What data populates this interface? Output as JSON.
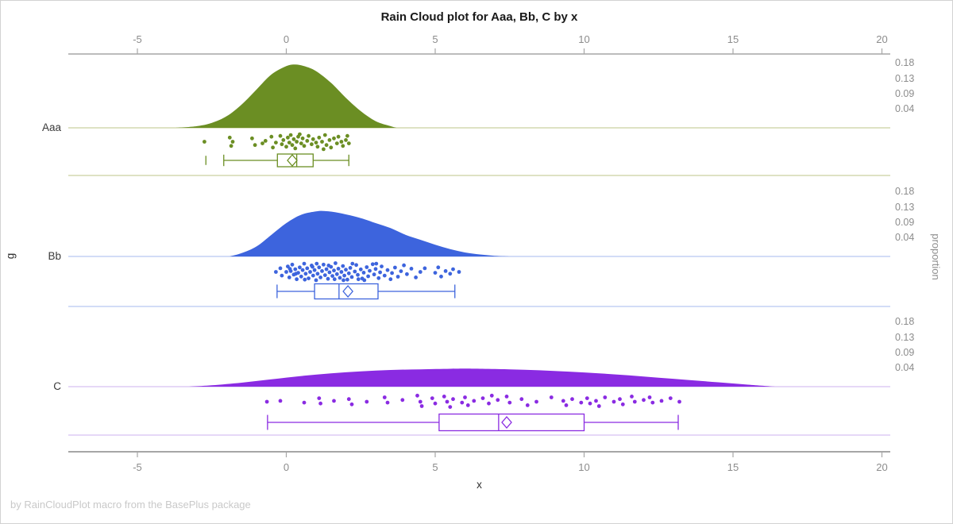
{
  "title": "Rain Cloud plot for Aaa, Bb, C by x",
  "footer": "by RainCloudPlot macro from the BasePlus package",
  "x_axis": {
    "label": "x",
    "ticks": [
      "-5",
      "0",
      "5",
      "10",
      "15",
      "20"
    ],
    "tick_values": [
      -5,
      0,
      5,
      10,
      15,
      20
    ],
    "range": [
      -5,
      20
    ]
  },
  "y_axis": {
    "label": "g",
    "categories": [
      "Aaa",
      "Bb",
      "C"
    ]
  },
  "right_axis": {
    "label": "proportion",
    "tick_labels": [
      "0.18",
      "0.13",
      "0.09",
      "0.04"
    ],
    "tick_values": [
      0.18,
      0.13,
      0.09,
      0.04
    ]
  },
  "colors": {
    "axis": "#a6a6a6",
    "tick_text": "#8c8c8c",
    "title_text": "#1a1a1a",
    "category_text": "#3a3a3a",
    "footer_text": "#c9c9c9",
    "background": "#ffffff"
  },
  "chart_data": {
    "type": "raincloud",
    "title": "Rain Cloud plot for Aaa, Bb, C by x",
    "xlabel": "x",
    "ylabel": "g",
    "y2label": "proportion",
    "x_range": [
      -5,
      20
    ],
    "proportion_tick_values": [
      0.18,
      0.13,
      0.09,
      0.04
    ],
    "legend": "none",
    "grid": "off",
    "groups": [
      {
        "name": "Aaa",
        "color": "#6b8e23",
        "tint": "#c9d1a0",
        "density": {
          "x": [
            -3.7,
            -3.0,
            -2.5,
            -2.0,
            -1.5,
            -1.0,
            -0.5,
            0.0,
            0.3,
            0.6,
            1.0,
            1.5,
            2.0,
            2.5,
            3.0,
            3.5,
            3.7
          ],
          "p": [
            0,
            0.005,
            0.015,
            0.035,
            0.07,
            0.115,
            0.16,
            0.185,
            0.19,
            0.185,
            0.17,
            0.135,
            0.09,
            0.05,
            0.02,
            0.005,
            0
          ]
        },
        "box": {
          "whisker_low": -2.1,
          "q1": -0.3,
          "median": 0.35,
          "q3": 0.9,
          "whisker_high": 2.1,
          "mean": 0.2,
          "outliers": [
            -2.7
          ]
        },
        "points": [
          [
            -2.75,
            0.5
          ],
          [
            -1.9,
            0.25
          ],
          [
            -1.85,
            0.75
          ],
          [
            -1.8,
            0.5
          ],
          [
            -1.15,
            0.3
          ],
          [
            -1.05,
            0.7
          ],
          [
            -0.8,
            0.6
          ],
          [
            -0.7,
            0.45
          ],
          [
            -0.5,
            0.2
          ],
          [
            -0.45,
            0.85
          ],
          [
            -0.35,
            0.55
          ],
          [
            -0.2,
            0.15
          ],
          [
            -0.15,
            0.65
          ],
          [
            -0.1,
            0.4
          ],
          [
            0.0,
            0.8
          ],
          [
            0.05,
            0.25
          ],
          [
            0.1,
            0.55
          ],
          [
            0.15,
            0.1
          ],
          [
            0.2,
            0.7
          ],
          [
            0.25,
            0.35
          ],
          [
            0.3,
            0.9
          ],
          [
            0.35,
            0.5
          ],
          [
            0.4,
            0.2
          ],
          [
            0.45,
            0.05
          ],
          [
            0.5,
            0.6
          ],
          [
            0.55,
            0.3
          ],
          [
            0.6,
            0.75
          ],
          [
            0.7,
            0.45
          ],
          [
            0.75,
            0.15
          ],
          [
            0.85,
            0.65
          ],
          [
            0.9,
            0.35
          ],
          [
            1.0,
            0.55
          ],
          [
            1.05,
            0.8
          ],
          [
            1.1,
            0.25
          ],
          [
            1.2,
            0.5
          ],
          [
            1.25,
            0.95
          ],
          [
            1.3,
            0.1
          ],
          [
            1.35,
            0.7
          ],
          [
            1.45,
            0.4
          ],
          [
            1.5,
            0.85
          ],
          [
            1.6,
            0.3
          ],
          [
            1.7,
            0.6
          ],
          [
            1.75,
            0.2
          ],
          [
            1.85,
            0.5
          ],
          [
            1.9,
            0.75
          ],
          [
            2.0,
            0.4
          ],
          [
            2.05,
            0.15
          ],
          [
            2.1,
            0.6
          ]
        ]
      },
      {
        "name": "Bb",
        "color": "#3d64dd",
        "tint": "#b7c6f2",
        "density": {
          "x": [
            -1.9,
            -1.5,
            -1.0,
            -0.5,
            0.0,
            0.5,
            1.0,
            1.3,
            1.8,
            2.5,
            3.0,
            3.5,
            4.0,
            4.5,
            5.0,
            5.5,
            6.0,
            6.5,
            7.0,
            7.5
          ],
          "p": [
            0,
            0.01,
            0.03,
            0.065,
            0.1,
            0.125,
            0.135,
            0.136,
            0.13,
            0.115,
            0.1,
            0.085,
            0.065,
            0.05,
            0.035,
            0.022,
            0.012,
            0.006,
            0.002,
            0
          ]
        },
        "box": {
          "whisker_low": -0.31,
          "q1": 0.95,
          "median": 1.77,
          "q3": 3.08,
          "whisker_high": 5.66,
          "mean": 2.07,
          "outliers": []
        },
        "points": [
          [
            -0.35,
            0.5
          ],
          [
            -0.2,
            0.3
          ],
          [
            -0.15,
            0.7
          ],
          [
            0.0,
            0.5
          ],
          [
            0.05,
            0.2
          ],
          [
            0.1,
            0.8
          ],
          [
            0.12,
            0.33
          ],
          [
            0.15,
            0.45
          ],
          [
            0.2,
            0.1
          ],
          [
            0.25,
            0.65
          ],
          [
            0.3,
            0.35
          ],
          [
            0.32,
            0.6
          ],
          [
            0.35,
            0.9
          ],
          [
            0.4,
            0.55
          ],
          [
            0.45,
            0.25
          ],
          [
            0.5,
            0.75
          ],
          [
            0.55,
            0.4
          ],
          [
            0.6,
            0.05
          ],
          [
            0.62,
            0.92
          ],
          [
            0.65,
            0.6
          ],
          [
            0.7,
            0.3
          ],
          [
            0.75,
            0.85
          ],
          [
            0.8,
            0.5
          ],
          [
            0.85,
            0.15
          ],
          [
            0.88,
            0.22
          ],
          [
            0.9,
            0.7
          ],
          [
            0.95,
            0.4
          ],
          [
            1.0,
            0.95
          ],
          [
            1.02,
            0.05
          ],
          [
            1.05,
            0.6
          ],
          [
            1.1,
            0.25
          ],
          [
            1.15,
            0.8
          ],
          [
            1.2,
            0.45
          ],
          [
            1.25,
            0.1
          ],
          [
            1.3,
            0.68
          ],
          [
            1.35,
            0.35
          ],
          [
            1.4,
            0.88
          ],
          [
            1.42,
            0.15
          ],
          [
            1.45,
            0.52
          ],
          [
            1.5,
            0.22
          ],
          [
            1.55,
            0.72
          ],
          [
            1.6,
            0.42
          ],
          [
            1.62,
            0.9
          ],
          [
            1.65,
            0.02
          ],
          [
            1.7,
            0.62
          ],
          [
            1.75,
            0.32
          ],
          [
            1.8,
            0.82
          ],
          [
            1.85,
            0.5
          ],
          [
            1.9,
            0.18
          ],
          [
            1.92,
            0.95
          ],
          [
            1.95,
            0.7
          ],
          [
            2.0,
            0.38
          ],
          [
            2.05,
            0.92
          ],
          [
            2.1,
            0.58
          ],
          [
            2.15,
            0.28
          ],
          [
            2.2,
            0.78
          ],
          [
            2.22,
            0.05
          ],
          [
            2.3,
            0.48
          ],
          [
            2.35,
            0.12
          ],
          [
            2.4,
            0.66
          ],
          [
            2.42,
            0.9
          ],
          [
            2.5,
            0.36
          ],
          [
            2.55,
            0.86
          ],
          [
            2.6,
            0.54
          ],
          [
            2.62,
            0.95
          ],
          [
            2.7,
            0.24
          ],
          [
            2.75,
            0.74
          ],
          [
            2.8,
            0.44
          ],
          [
            2.9,
            0.08
          ],
          [
            2.95,
            0.64
          ],
          [
            3.0,
            0.34
          ],
          [
            3.02,
            0.05
          ],
          [
            3.1,
            0.84
          ],
          [
            3.15,
            0.52
          ],
          [
            3.2,
            0.2
          ],
          [
            3.3,
            0.7
          ],
          [
            3.4,
            0.4
          ],
          [
            3.5,
            0.9
          ],
          [
            3.55,
            0.56
          ],
          [
            3.65,
            0.26
          ],
          [
            3.75,
            0.76
          ],
          [
            3.85,
            0.46
          ],
          [
            3.95,
            0.14
          ],
          [
            4.05,
            0.62
          ],
          [
            4.2,
            0.32
          ],
          [
            4.35,
            0.8
          ],
          [
            4.5,
            0.5
          ],
          [
            4.65,
            0.3
          ],
          [
            5.0,
            0.55
          ],
          [
            5.1,
            0.25
          ],
          [
            5.2,
            0.75
          ],
          [
            5.35,
            0.45
          ],
          [
            5.5,
            0.6
          ],
          [
            5.6,
            0.35
          ],
          [
            5.8,
            0.5
          ]
        ]
      },
      {
        "name": "C",
        "color": "#8a2be2",
        "tint": "#d8c0f2",
        "density": {
          "x": [
            -3.3,
            -2.5,
            -1.5,
            -0.5,
            0.5,
            1.5,
            2.5,
            3.5,
            4.5,
            5.5,
            6.0,
            6.5,
            7.5,
            8.5,
            9.5,
            10.5,
            11.5,
            12.5,
            13.5,
            14.5,
            15.5,
            16.4
          ],
          "p": [
            0,
            0.004,
            0.012,
            0.022,
            0.032,
            0.04,
            0.046,
            0.05,
            0.052,
            0.0535,
            0.054,
            0.0535,
            0.052,
            0.049,
            0.045,
            0.04,
            0.034,
            0.027,
            0.02,
            0.013,
            0.006,
            0
          ]
        },
        "box": {
          "whisker_low": -0.63,
          "q1": 5.13,
          "median": 7.13,
          "q3": 10.0,
          "whisker_high": 13.16,
          "mean": 7.4,
          "outliers": []
        },
        "points": [
          [
            -0.65,
            0.5
          ],
          [
            -0.2,
            0.45
          ],
          [
            0.6,
            0.55
          ],
          [
            1.1,
            0.3
          ],
          [
            1.15,
            0.6
          ],
          [
            1.6,
            0.45
          ],
          [
            2.1,
            0.35
          ],
          [
            2.2,
            0.65
          ],
          [
            2.7,
            0.5
          ],
          [
            3.3,
            0.25
          ],
          [
            3.4,
            0.55
          ],
          [
            3.9,
            0.4
          ],
          [
            4.4,
            0.15
          ],
          [
            4.5,
            0.5
          ],
          [
            4.55,
            0.75
          ],
          [
            4.9,
            0.3
          ],
          [
            5.0,
            0.6
          ],
          [
            5.3,
            0.2
          ],
          [
            5.4,
            0.5
          ],
          [
            5.5,
            0.8
          ],
          [
            5.6,
            0.35
          ],
          [
            5.9,
            0.55
          ],
          [
            6.0,
            0.25
          ],
          [
            6.1,
            0.7
          ],
          [
            6.3,
            0.45
          ],
          [
            6.6,
            0.3
          ],
          [
            6.8,
            0.6
          ],
          [
            6.9,
            0.15
          ],
          [
            7.1,
            0.4
          ],
          [
            7.4,
            0.2
          ],
          [
            7.5,
            0.55
          ],
          [
            7.9,
            0.35
          ],
          [
            8.1,
            0.7
          ],
          [
            8.4,
            0.5
          ],
          [
            8.9,
            0.25
          ],
          [
            9.3,
            0.45
          ],
          [
            9.4,
            0.7
          ],
          [
            9.6,
            0.35
          ],
          [
            9.9,
            0.55
          ],
          [
            10.1,
            0.3
          ],
          [
            10.2,
            0.6
          ],
          [
            10.4,
            0.45
          ],
          [
            10.5,
            0.75
          ],
          [
            10.7,
            0.25
          ],
          [
            11.0,
            0.5
          ],
          [
            11.2,
            0.35
          ],
          [
            11.3,
            0.65
          ],
          [
            11.6,
            0.2
          ],
          [
            11.7,
            0.5
          ],
          [
            12.0,
            0.4
          ],
          [
            12.2,
            0.25
          ],
          [
            12.3,
            0.55
          ],
          [
            12.6,
            0.45
          ],
          [
            12.9,
            0.3
          ],
          [
            13.2,
            0.5
          ]
        ]
      }
    ]
  }
}
